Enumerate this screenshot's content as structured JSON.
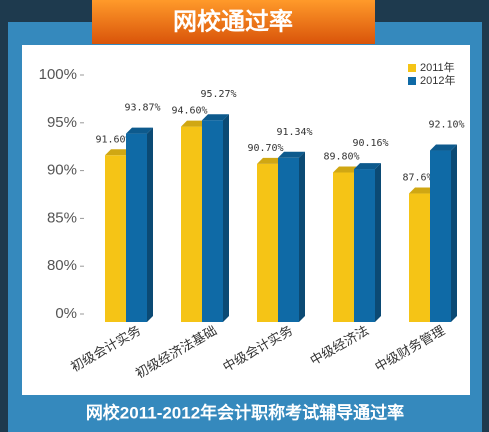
{
  "chart_data": {
    "type": "bar",
    "title": "网校通过率",
    "subtitle": "网校2011-2012年会计职称考试辅导通过率",
    "categories": [
      "初级会计实务",
      "初级经济法基础",
      "中级会计实务",
      "中级经济法",
      "中级财务管理"
    ],
    "series": [
      {
        "name": "2011年",
        "color": "#f5c416",
        "values": [
          91.6,
          94.6,
          90.7,
          89.8,
          87.6
        ],
        "value_labels": [
          "91.60%",
          "94.60%",
          "90.70%",
          "89.80%",
          "87.6%"
        ]
      },
      {
        "name": "2012年",
        "color": "#0f6aa6",
        "values": [
          93.87,
          95.27,
          91.34,
          90.16,
          92.1
        ],
        "value_labels": [
          "93.87%",
          "95.27%",
          "91.34%",
          "90.16%",
          "92.10%"
        ]
      }
    ],
    "ylim": [
      0,
      100
    ],
    "yticks": [
      {
        "value": 0,
        "label": "0%"
      },
      {
        "value": 80,
        "label": "80%"
      },
      {
        "value": 85,
        "label": "85%"
      },
      {
        "value": 90,
        "label": "90%"
      },
      {
        "value": 95,
        "label": "95%"
      },
      {
        "value": 100,
        "label": "100%"
      }
    ],
    "legend": "top-right"
  }
}
